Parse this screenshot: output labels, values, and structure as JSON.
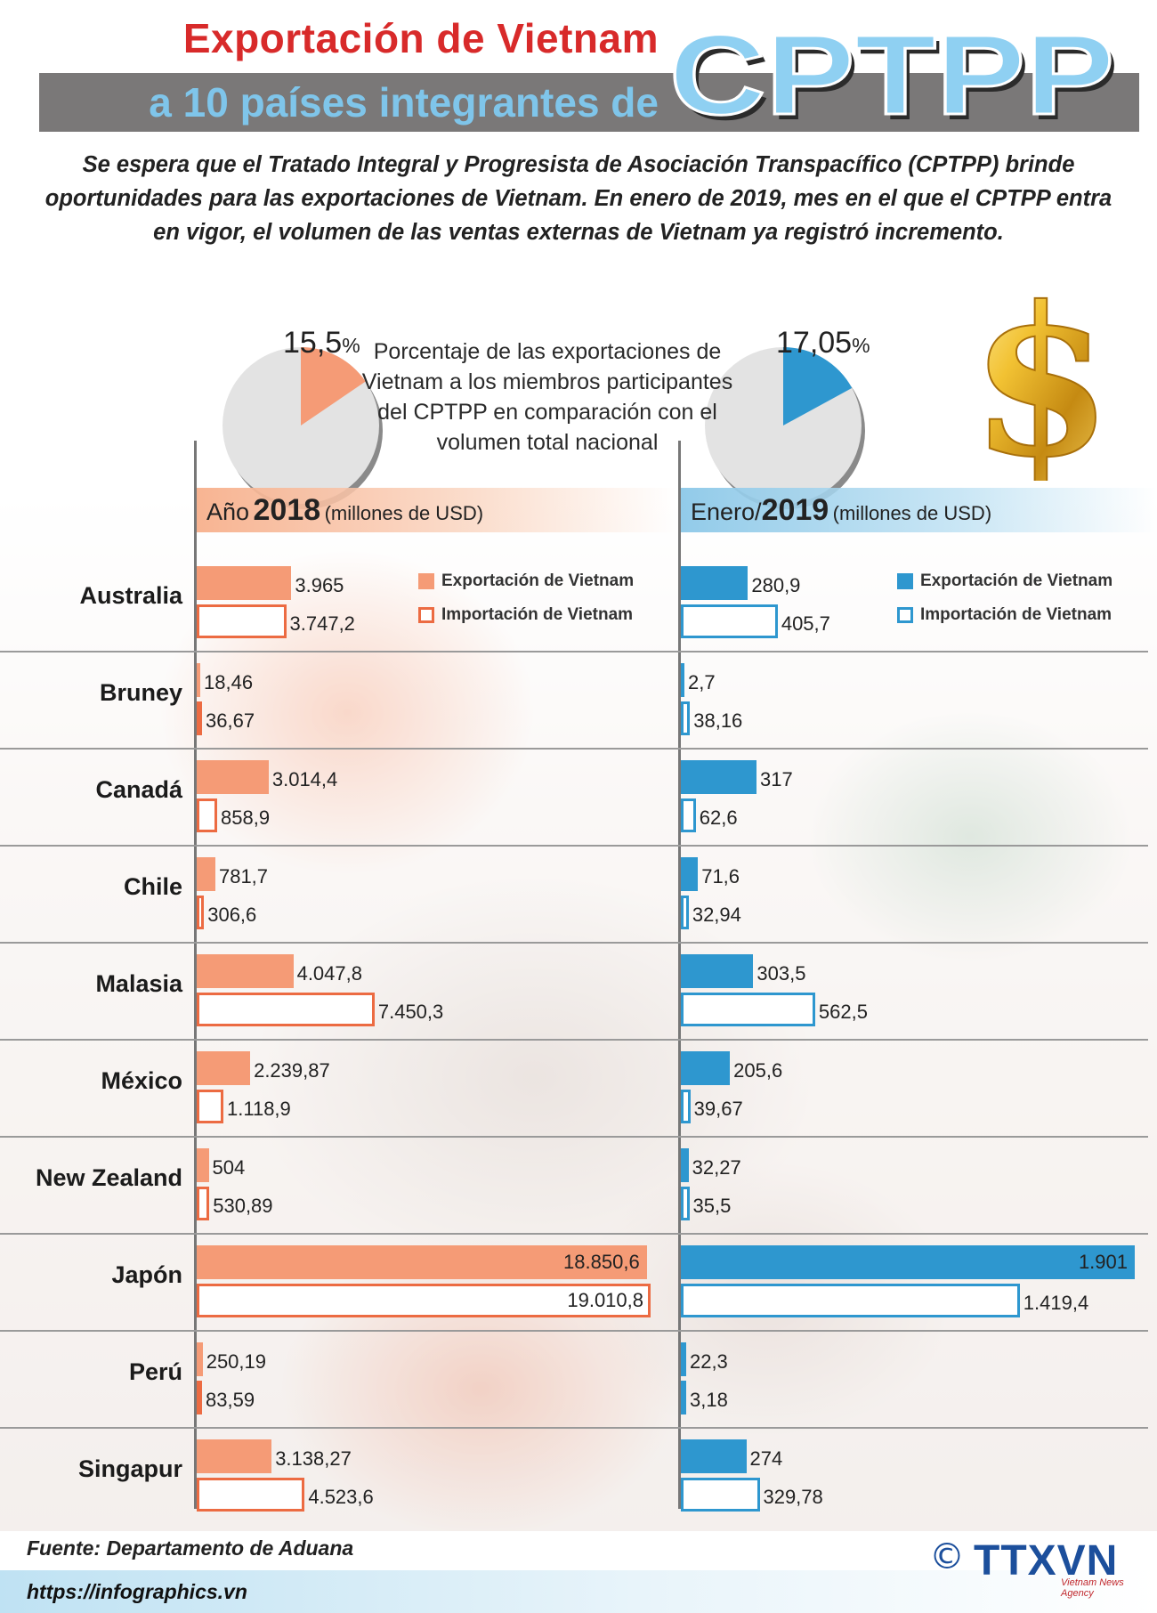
{
  "title": {
    "line1": "Exportación de Vietnam",
    "line2": "a 10 países integrantes de",
    "acronym": "CPTPP"
  },
  "intro": "Se espera que el Tratado Integral y Progresista de Asociación Transpacífico (CPTPP) brinde oportunidades para las exportaciones de Vietnam. En enero de 2019, mes en el que el CPTPP entra en vigor, el volumen de las ventas externas de Vietnam ya registró incremento.",
  "pies": {
    "caption": "Porcentaje de las exportaciones de Vietnam a los miembros participantes del CPTPP en comparación con el volumen total nacional",
    "left": {
      "value": 15.5,
      "label": "15,5",
      "symbol": "%",
      "color": "#f59b76"
    },
    "right": {
      "value": 17.05,
      "label": "17,05",
      "symbol": "%",
      "color": "#2e97cf"
    }
  },
  "panels": {
    "left": {
      "prefix": "Año",
      "year": "2018",
      "unit": "(millones de USD)"
    },
    "right": {
      "prefix": "Enero/",
      "year": "2019",
      "unit": "(millones de USD)"
    }
  },
  "legend": {
    "export": "Exportación de Vietnam",
    "import": "Importación de Vietnam"
  },
  "chart_data": [
    {
      "type": "bar",
      "title": "Año 2018 (millones de USD)",
      "orientation": "horizontal",
      "categories": [
        "Australia",
        "Bruney",
        "Canadá",
        "Chile",
        "Malasia",
        "México",
        "New Zealand",
        "Japón",
        "Perú",
        "Singapur"
      ],
      "series": [
        {
          "name": "Exportación de Vietnam",
          "values": [
            3965,
            18.46,
            3014.4,
            781.7,
            4047.8,
            2239.87,
            504,
            18850.6,
            250.19,
            3138.27
          ],
          "labels": [
            "3.965",
            "18,46",
            "3.014,4",
            "781,7",
            "4.047,8",
            "2.239,87",
            "504",
            "18.850,6",
            "250,19",
            "3.138,27"
          ]
        },
        {
          "name": "Importación de Vietnam",
          "values": [
            3747.2,
            36.67,
            858.9,
            306.6,
            7450.3,
            1118.9,
            530.89,
            19010.8,
            83.59,
            4523.6
          ],
          "labels": [
            "3.747,2",
            "36,67",
            "858,9",
            "306,6",
            "7.450,3",
            "1.118,9",
            "530,89",
            "19.010,8",
            "83,59",
            "4.523,6"
          ]
        }
      ],
      "colors": {
        "export": "#f59b76",
        "import_border": "#ec6b42"
      }
    },
    {
      "type": "bar",
      "title": "Enero/2019 (millones de USD)",
      "orientation": "horizontal",
      "categories": [
        "Australia",
        "Bruney",
        "Canadá",
        "Chile",
        "Malasia",
        "México",
        "New Zealand",
        "Japón",
        "Perú",
        "Singapur"
      ],
      "series": [
        {
          "name": "Exportación de Vietnam",
          "values": [
            280.9,
            2.7,
            317,
            71.6,
            303.5,
            205.6,
            32.27,
            1901,
            22.3,
            274
          ],
          "labels": [
            "280,9",
            "2,7",
            "317",
            "71,6",
            "303,5",
            "205,6",
            "32,27",
            "1.901",
            "22,3",
            "274"
          ]
        },
        {
          "name": "Importación de Vietnam",
          "values": [
            405.7,
            38.16,
            62.6,
            32.94,
            562.5,
            39.67,
            35.5,
            1419.4,
            3.18,
            329.78
          ],
          "labels": [
            "405,7",
            "38,16",
            "62,6",
            "32,94",
            "562,5",
            "39,67",
            "35,5",
            "1.419,4",
            "3,18",
            "329,78"
          ]
        }
      ],
      "colors": {
        "export": "#2e97cf",
        "import_border": "#2e97cf"
      }
    }
  ],
  "footer": {
    "source": "Fuente: Departamento de Aduana",
    "url": "https://infographics.vn",
    "copyright": "©",
    "logo": "TTXVN",
    "agency": "Vietnam News Agency"
  }
}
